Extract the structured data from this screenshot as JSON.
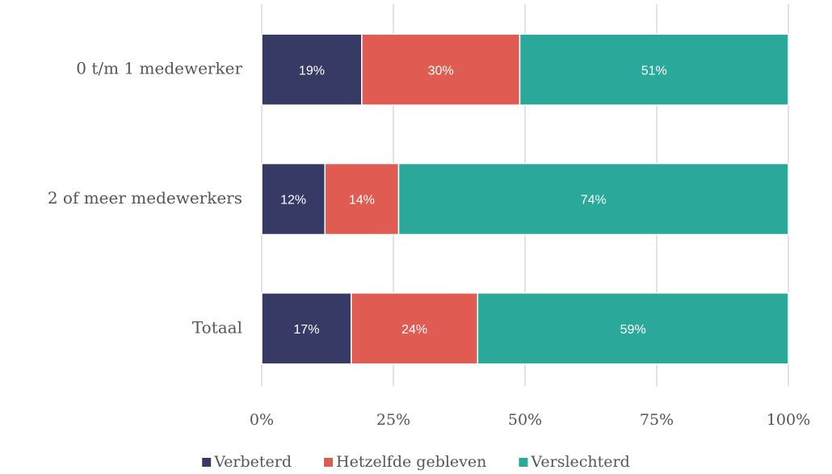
{
  "chart_data": {
    "type": "stacked-barh",
    "categories": [
      "0 t/m 1 medewerker",
      "2 of meer medewerkers",
      "Totaal"
    ],
    "series": [
      {
        "name": "Verbeterd",
        "color": "#383a66",
        "values": [
          19,
          12,
          17
        ],
        "value_labels": [
          "19%",
          "12%",
          "17%"
        ]
      },
      {
        "name": "Hetzelfde gebleven",
        "color": "#e05c52",
        "values": [
          30,
          14,
          24
        ],
        "value_labels": [
          "30%",
          "14%",
          "24%"
        ]
      },
      {
        "name": "Verslechterd",
        "color": "#2aa89a",
        "values": [
          51,
          74,
          59
        ],
        "value_labels": [
          "51%",
          "74%",
          "59%"
        ]
      }
    ],
    "xlim": [
      0,
      100
    ],
    "xticks": [
      {
        "value": 0,
        "label": "0%"
      },
      {
        "value": 25,
        "label": "25%"
      },
      {
        "value": 50,
        "label": "50%"
      },
      {
        "value": 75,
        "label": "75%"
      },
      {
        "value": 100,
        "label": "100%"
      }
    ],
    "grid": true,
    "legend": "bottom"
  }
}
